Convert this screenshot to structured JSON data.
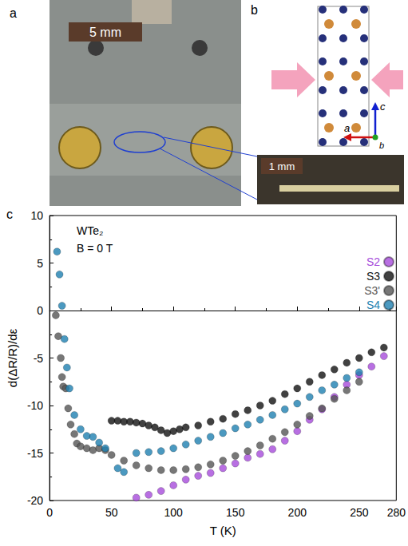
{
  "panels": {
    "a": {
      "label": "a",
      "scale_bar": "5 mm"
    },
    "b": {
      "label": "b",
      "axes": [
        "c",
        "a",
        "b"
      ],
      "inset_scale_bar": "1 mm"
    }
  },
  "chart_data": {
    "type": "scatter",
    "label": "c",
    "annotations": [
      "WTe₂",
      "B = 0 T"
    ],
    "x_label": "T (K)",
    "y_label": "d(ΔR/R)/dε",
    "xlim": [
      0,
      280
    ],
    "xticks": [
      0,
      50,
      100,
      150,
      200,
      250
    ],
    "ylim": [
      -20,
      10
    ],
    "yticks": [
      -20,
      -15,
      -10,
      -5,
      0,
      5,
      10
    ],
    "grid": false,
    "legend": "upper right",
    "marker": "circle",
    "series": [
      {
        "name": "S2",
        "color": "#a64bdb",
        "x": [
          70,
          80,
          90,
          100,
          110,
          120,
          130,
          140,
          150,
          160,
          170,
          180,
          190,
          200,
          210,
          220,
          230,
          240,
          250,
          260,
          270
        ],
        "values": [
          -19.7,
          -19.4,
          -19.0,
          -18.4,
          -17.8,
          -17.4,
          -17.1,
          -16.6,
          -16.1,
          -15.5,
          -15.1,
          -14.6,
          -13.7,
          -12.7,
          -11.5,
          -10.4,
          -9.1,
          -7.8,
          -6.8,
          -5.9,
          -4.8
        ]
      },
      {
        "name": "S3",
        "color": "#111111",
        "x": [
          50,
          55,
          60,
          65,
          70,
          75,
          80,
          85,
          90,
          95,
          100,
          105,
          110,
          120,
          130,
          140,
          150,
          160,
          170,
          180,
          190,
          200,
          210,
          220,
          230,
          240,
          250,
          260,
          270
        ],
        "values": [
          -11.6,
          -11.6,
          -11.7,
          -11.7,
          -11.8,
          -11.9,
          -12.1,
          -12.3,
          -12.6,
          -12.9,
          -12.7,
          -12.5,
          -12.3,
          -12.1,
          -11.7,
          -11.4,
          -10.9,
          -10.5,
          -10.0,
          -9.5,
          -8.8,
          -8.2,
          -7.5,
          -6.8,
          -6.2,
          -5.5,
          -5.0,
          -4.4,
          -3.9
        ]
      },
      {
        "name": "S3'",
        "color": "#555555",
        "x": [
          5,
          7,
          9,
          10,
          11,
          13,
          15,
          17,
          20,
          22,
          25,
          30,
          35,
          40,
          45,
          50,
          60,
          70,
          80,
          90,
          100,
          110,
          120,
          130,
          140,
          150,
          160,
          170,
          180,
          190,
          200,
          210,
          220,
          230,
          240,
          250
        ],
        "values": [
          -0.5,
          -2.7,
          -5.0,
          -7.0,
          -8.0,
          -8.2,
          -10.3,
          -12.0,
          -13.0,
          -14.0,
          -14.3,
          -14.5,
          -14.7,
          -14.5,
          -14.7,
          -15.2,
          -15.8,
          -16.3,
          -16.6,
          -16.8,
          -16.8,
          -16.7,
          -16.5,
          -16.2,
          -15.8,
          -15.3,
          -14.8,
          -14.2,
          -13.5,
          -12.8,
          -12.0,
          -11.1,
          -10.3,
          -9.3,
          -8.4,
          -7.5
        ]
      },
      {
        "name": "S4",
        "color": "#1e7fb0",
        "x": [
          6,
          8,
          10,
          12,
          14,
          16,
          20,
          25,
          30,
          35,
          40,
          45,
          55,
          60,
          70,
          80,
          90,
          100,
          110,
          120,
          130,
          140,
          150,
          160,
          170,
          180,
          190,
          200,
          210,
          220,
          230,
          240,
          250
        ],
        "values": [
          6.2,
          3.8,
          0.5,
          -3.0,
          -6.0,
          -8.2,
          -11.0,
          -12.5,
          -13.2,
          -13.3,
          -13.9,
          -14.5,
          -16.6,
          -17.0,
          -15.0,
          -14.9,
          -14.8,
          -14.5,
          -14.1,
          -13.7,
          -13.3,
          -12.9,
          -12.4,
          -12.0,
          -11.5,
          -11.0,
          -10.4,
          -9.8,
          -9.1,
          -8.4,
          -7.8,
          -7.1,
          -6.5
        ]
      }
    ]
  }
}
